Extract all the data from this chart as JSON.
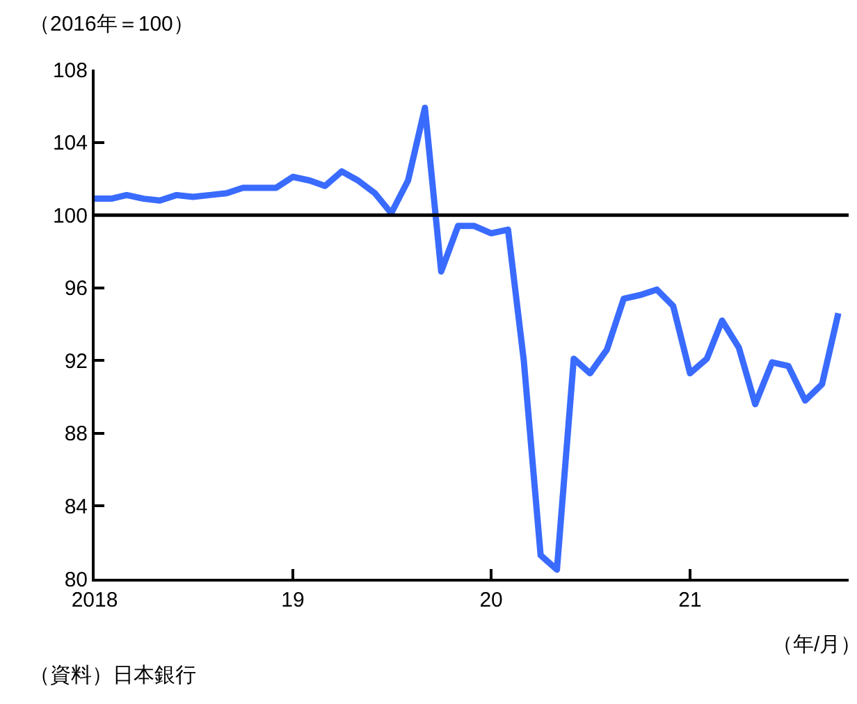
{
  "chart_data": {
    "type": "line",
    "ylabel": "（2016年＝100）",
    "xlabel": "（年/月）",
    "x": [
      "2018-01",
      "2018-02",
      "2018-03",
      "2018-04",
      "2018-05",
      "2018-06",
      "2018-07",
      "2018-08",
      "2018-09",
      "2018-10",
      "2018-11",
      "2018-12",
      "2019-01",
      "2019-02",
      "2019-03",
      "2019-04",
      "2019-05",
      "2019-06",
      "2019-07",
      "2019-08",
      "2019-09",
      "2019-10",
      "2019-11",
      "2019-12",
      "2020-01",
      "2020-02",
      "2020-03",
      "2020-04",
      "2020-05",
      "2020-06",
      "2020-07",
      "2020-08",
      "2020-09",
      "2020-10",
      "2020-11",
      "2020-12",
      "2021-01",
      "2021-02",
      "2021-03",
      "2021-04",
      "2021-05",
      "2021-06",
      "2021-07",
      "2021-08",
      "2021-09",
      "2021-10"
    ],
    "series": [
      {
        "color": "#3a6bff",
        "values": [
          100.9,
          100.9,
          101.1,
          100.9,
          100.8,
          101.1,
          101.0,
          101.1,
          101.2,
          101.5,
          101.5,
          101.5,
          102.1,
          101.9,
          101.6,
          102.4,
          101.9,
          101.2,
          100.1,
          101.9,
          105.9,
          96.9,
          99.4,
          99.4,
          99.0,
          99.2,
          92.0,
          81.3,
          80.5,
          92.1,
          91.3,
          92.6,
          95.4,
          95.6,
          95.9,
          95.0,
          91.3,
          92.1,
          94.2,
          92.7,
          89.6,
          91.9,
          91.7,
          89.8,
          90.7,
          94.6
        ]
      }
    ],
    "xlim": [
      "2018-01-01",
      "2021-10-20"
    ],
    "xticks": [
      {
        "value": "2018-01-01",
        "label": "2018"
      },
      {
        "value": "2019-01-01",
        "label": "19"
      },
      {
        "value": "2020-01-01",
        "label": "20"
      },
      {
        "value": "2021-01-01",
        "label": "21"
      }
    ],
    "ylim": [
      80,
      108
    ],
    "yticks": [
      80,
      84,
      88,
      92,
      96,
      100,
      104,
      108
    ],
    "ref_lines": [
      {
        "axis": "y",
        "value": 100,
        "color": "#000000"
      }
    ],
    "marker": "none",
    "line_style": "solid",
    "annotations": [
      "（資料）日本銀行"
    ]
  }
}
